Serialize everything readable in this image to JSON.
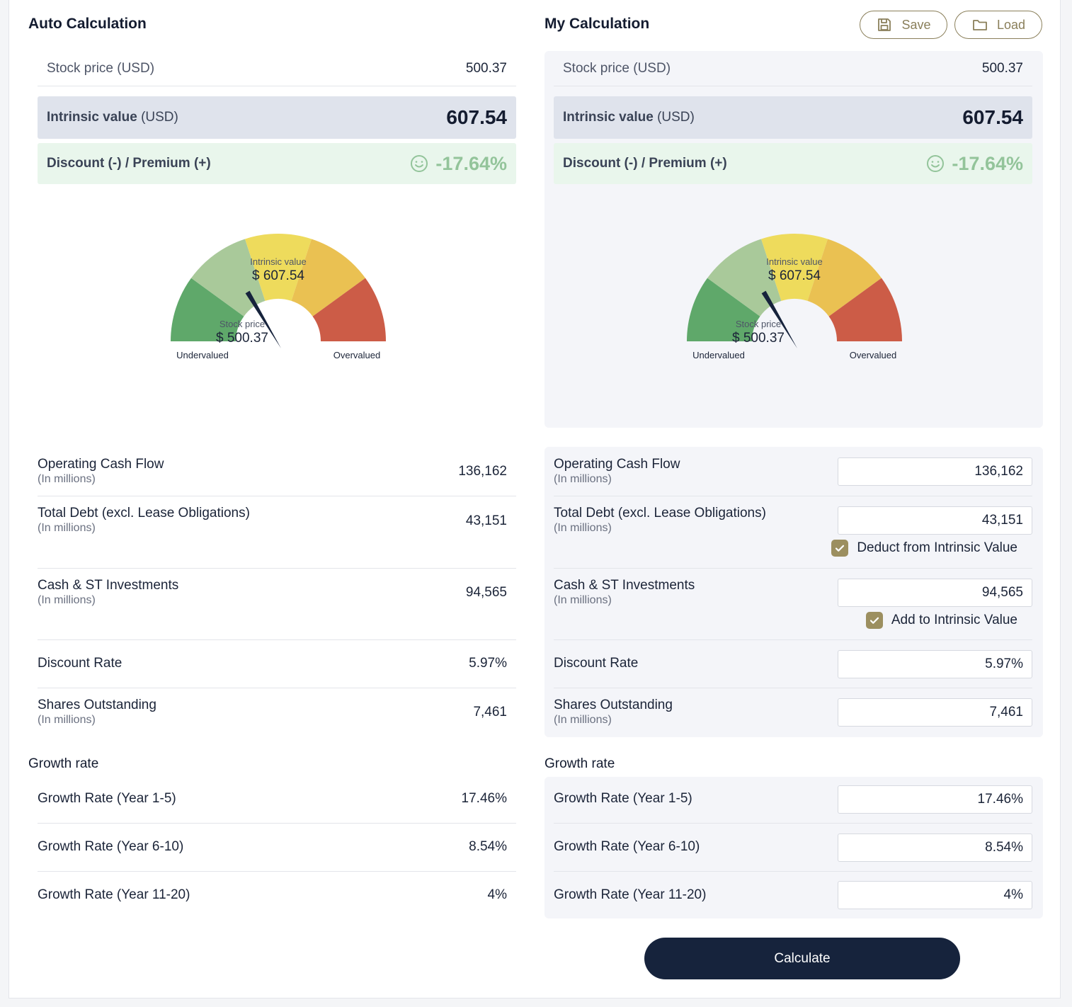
{
  "left": {
    "title": "Auto Calculation",
    "stock_price_label": "Stock price (USD)",
    "stock_price": "500.37",
    "intrinsic_label_bold": "Intrinsic value",
    "intrinsic_label_unit": "(USD)",
    "intrinsic_value": "607.54",
    "discount_label": "Discount (-) / Premium (+)",
    "discount_value": "-17.64%"
  },
  "right": {
    "title": "My Calculation",
    "save_label": "Save",
    "load_label": "Load",
    "stock_price_label": "Stock price (USD)",
    "stock_price": "500.37",
    "intrinsic_label_bold": "Intrinsic value",
    "intrinsic_label_unit": "(USD)",
    "intrinsic_value": "607.54",
    "discount_label": "Discount (-) / Premium (+)",
    "discount_value": "-17.64%",
    "deduct_label": "Deduct from Intrinsic Value",
    "add_label": "Add to Intrinsic Value",
    "calculate_label": "Calculate"
  },
  "gauge": {
    "iv_caption": "Intrinsic value",
    "iv_value": "$ 607.54",
    "price_caption": "Stock price",
    "price_value": "$ 500.37",
    "left_caption": "Undervalued",
    "right_caption": "Overvalued",
    "colors": [
      "#5fa86a",
      "#a9c99a",
      "#eedb5c",
      "#eac152",
      "#cc5c47"
    ]
  },
  "fields": {
    "ocf_label": "Operating Cash Flow",
    "ocf_sub": "(In millions)",
    "ocf_value": "136,162",
    "debt_label": "Total Debt (excl. Lease Obligations)",
    "debt_sub": "(In millions)",
    "debt_value": "43,151",
    "cash_label": "Cash & ST Investments",
    "cash_sub": "(In millions)",
    "cash_value": "94,565",
    "dr_label": "Discount Rate",
    "dr_value": "5.97%",
    "shares_label": "Shares Outstanding",
    "shares_sub": "(In millions)",
    "shares_value": "7,461"
  },
  "growth": {
    "title": "Growth rate",
    "g1_label": "Growth Rate (Year 1-5)",
    "g1_value": "17.46%",
    "g2_label": "Growth Rate (Year 6-10)",
    "g2_value": "8.54%",
    "g3_label": "Growth Rate (Year 11-20)",
    "g3_value": "4%"
  }
}
